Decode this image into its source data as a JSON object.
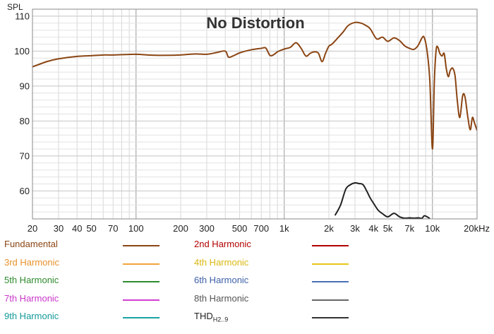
{
  "chart_data": {
    "type": "line",
    "title": "No Distortion",
    "ylabel": "SPL",
    "xlabel": "",
    "xscale": "log",
    "xlim": [
      20,
      20000
    ],
    "ylim": [
      52,
      112
    ],
    "grid": true,
    "x_ticks": [
      {
        "value": 20,
        "label": "20"
      },
      {
        "value": 30,
        "label": "30"
      },
      {
        "value": 40,
        "label": "40"
      },
      {
        "value": 50,
        "label": "50"
      },
      {
        "value": 70,
        "label": "70"
      },
      {
        "value": 100,
        "label": "100"
      },
      {
        "value": 200,
        "label": "200"
      },
      {
        "value": 300,
        "label": "300"
      },
      {
        "value": 500,
        "label": "500"
      },
      {
        "value": 700,
        "label": "700"
      },
      {
        "value": 1000,
        "label": "1k"
      },
      {
        "value": 2000,
        "label": "2k"
      },
      {
        "value": 3000,
        "label": "3k"
      },
      {
        "value": 4000,
        "label": "4k"
      },
      {
        "value": 5000,
        "label": "5k"
      },
      {
        "value": 7000,
        "label": "7k"
      },
      {
        "value": 10000,
        "label": "10k"
      },
      {
        "value": 20000,
        "label": "20kHz"
      }
    ],
    "y_ticks": [
      {
        "value": 60,
        "label": "60"
      },
      {
        "value": 70,
        "label": "70"
      },
      {
        "value": 80,
        "label": "80"
      },
      {
        "value": 90,
        "label": "90"
      },
      {
        "value": 100,
        "label": "100"
      },
      {
        "value": 110,
        "label": "110"
      }
    ],
    "series": [
      {
        "name": "Fundamental",
        "color": "#8B4513",
        "x": [
          20,
          25,
          30,
          40,
          50,
          60,
          70,
          80,
          100,
          120,
          150,
          200,
          250,
          300,
          350,
          400,
          420,
          450,
          500,
          600,
          700,
          750,
          800,
          850,
          900,
          1000,
          1100,
          1200,
          1300,
          1400,
          1500,
          1600,
          1700,
          1800,
          1900,
          2000,
          2100,
          2300,
          2500,
          2700,
          3000,
          3300,
          3500,
          3800,
          4200,
          4600,
          5000,
          5500,
          6000,
          6500,
          7000,
          7500,
          8000,
          8500,
          8800,
          9200,
          9600,
          10000,
          10300,
          10600,
          10900,
          11200,
          11600,
          12000,
          12400,
          12800,
          13200,
          13700,
          14200,
          14700,
          15300,
          16000,
          16600,
          17300,
          18000,
          18600,
          19200,
          20000
        ],
        "y": [
          95.5,
          97,
          97.8,
          98.5,
          98.7,
          98.9,
          98.9,
          99.0,
          99.1,
          98.9,
          98.8,
          98.9,
          99.2,
          99.1,
          99.6,
          100.0,
          98.3,
          98.6,
          99.5,
          100.4,
          100.8,
          100.9,
          98.8,
          99.0,
          99.8,
          100.6,
          101.1,
          102.4,
          100.8,
          98.6,
          99.4,
          99.8,
          99.4,
          97.0,
          99.4,
          101.4,
          102.0,
          103.8,
          105.5,
          107.3,
          108.2,
          108.0,
          107.5,
          106.4,
          103.5,
          104.0,
          102.8,
          103.8,
          103.0,
          101.5,
          100.8,
          100.5,
          101.6,
          103.8,
          103.9,
          100.0,
          91.5,
          72.0,
          91.5,
          100.5,
          101.0,
          99.4,
          98.6,
          99.3,
          95.0,
          92.7,
          94.5,
          95.1,
          93.0,
          86.0,
          81.0,
          87.3,
          86.8,
          81.3,
          77.5,
          81.0,
          79.5,
          77.3
        ]
      },
      {
        "name": "THD",
        "color": "#222222",
        "x": [
          2200,
          2400,
          2600,
          2800,
          3000,
          3200,
          3400,
          3600,
          3800,
          4000,
          4300,
          4600,
          5000,
          5500,
          6000,
          6500,
          7000,
          7500,
          8000,
          8500,
          8800,
          9200,
          9600
        ],
        "y": [
          53.0,
          56.0,
          60.5,
          61.8,
          62.3,
          62.1,
          61.8,
          60.0,
          58.0,
          56.5,
          54.5,
          53.5,
          52.6,
          53.6,
          52.6,
          52.2,
          52.3,
          52.2,
          52.3,
          52.2,
          52.9,
          52.6,
          52.1
        ]
      }
    ]
  },
  "legend": {
    "items": [
      {
        "label": "Fundamental",
        "color": "#8B4513",
        "text_color": "#8B4513"
      },
      {
        "label": "2nd Harmonic",
        "color": "#B30000",
        "text_color": "#B30000"
      },
      {
        "label": "3rd Harmonic",
        "color": "#F2A33C",
        "text_color": "#E8912C"
      },
      {
        "label": "4th Harmonic",
        "color": "#E6C619",
        "text_color": "#D9B80F"
      },
      {
        "label": "5th Harmonic",
        "color": "#2E8B2E",
        "text_color": "#2E8B2E"
      },
      {
        "label": "6th Harmonic",
        "color": "#4A6FB8",
        "text_color": "#3F60A8"
      },
      {
        "label": "7th Harmonic",
        "color": "#D23ED2",
        "text_color": "#C837C8"
      },
      {
        "label": "8th Harmonic",
        "color": "#666666",
        "text_color": "#555555"
      },
      {
        "label": "9th Harmonic",
        "color": "#1AA3A3",
        "text_color": "#149A9A"
      },
      {
        "label": "THD",
        "label_sub": "H2..9",
        "color": "#333333",
        "text_color": "#222222"
      }
    ]
  }
}
